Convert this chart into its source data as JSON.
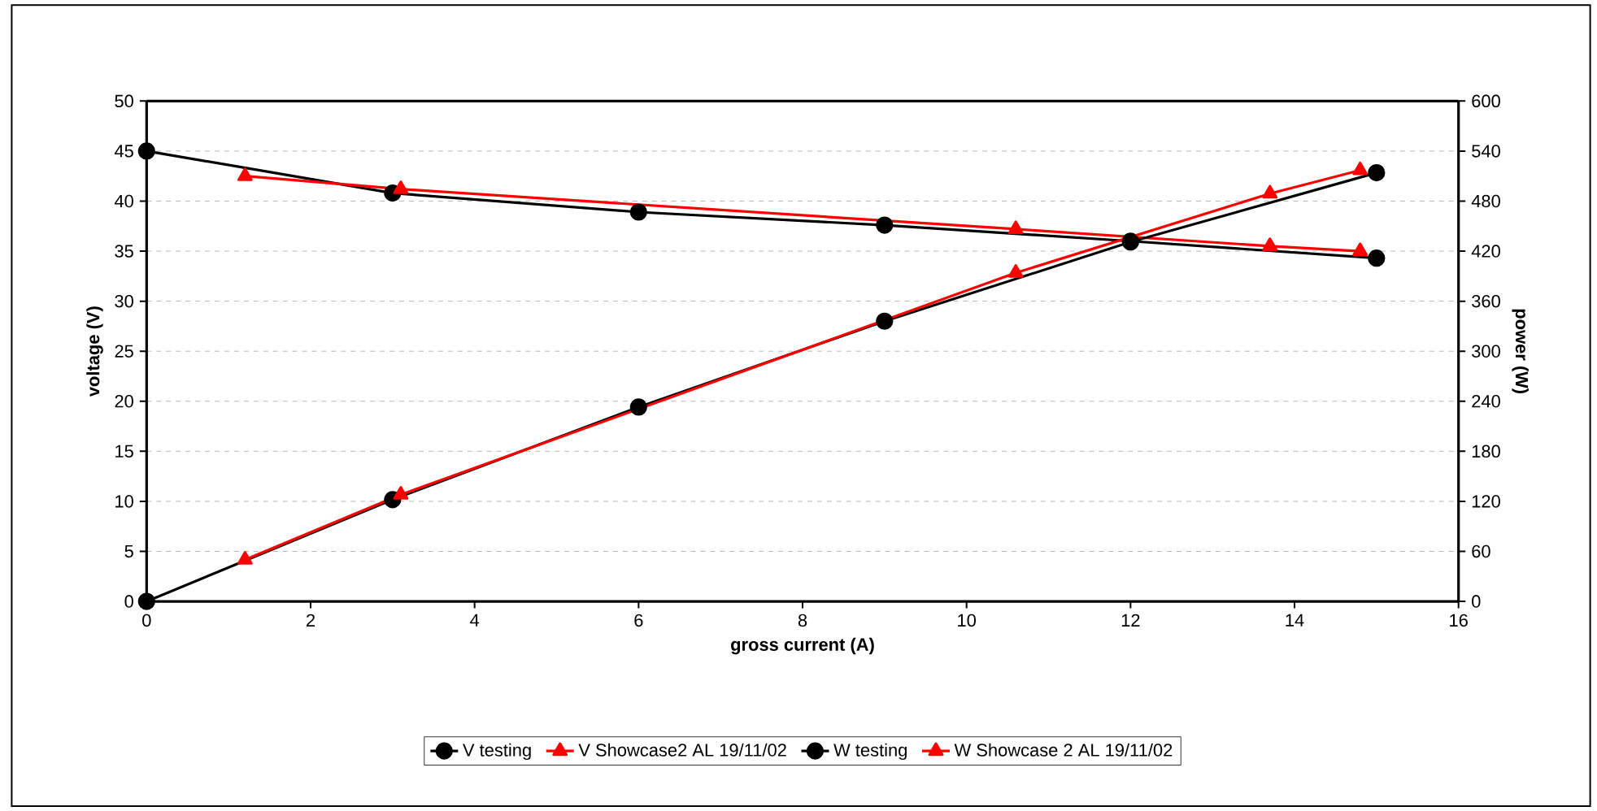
{
  "chart_data": {
    "type": "line",
    "xlabel": "gross current (A)",
    "ylabel": "voltage (V)",
    "y2label": "power (W)",
    "xlim": [
      0,
      16
    ],
    "xticks": [
      0,
      2,
      4,
      6,
      8,
      10,
      12,
      14,
      16
    ],
    "ylim": [
      0,
      50
    ],
    "yticks": [
      0,
      5,
      10,
      15,
      20,
      25,
      30,
      35,
      40,
      45,
      50
    ],
    "y2lim": [
      0,
      600
    ],
    "y2ticks": [
      0,
      60,
      120,
      180,
      240,
      300,
      360,
      420,
      480,
      540,
      600
    ],
    "grid": "y",
    "legend": "bottom",
    "series": [
      {
        "name": "V testing",
        "color": "#000000",
        "marker": "circle",
        "x": [
          0,
          3,
          6,
          9,
          12,
          15
        ],
        "values": [
          45,
          40.8,
          38.9,
          37.6,
          36,
          34.3
        ]
      },
      {
        "name": "V Showcase2 AL 19/11/02",
        "color": "#ff0000",
        "marker": "triangle",
        "x": [
          1.2,
          3.1,
          10.6,
          13.7,
          14.8
        ],
        "values": [
          42.5,
          41.2,
          37.2,
          35.5,
          35
        ]
      },
      {
        "name": "W testing",
        "color": "#000000",
        "marker": "circle",
        "axis": "y2",
        "x": [
          0,
          3,
          6,
          9,
          12,
          15
        ],
        "values": [
          0,
          122,
          233,
          336,
          431,
          514
        ]
      },
      {
        "name": "W Showcase 2 AL 19/11/02",
        "color": "#ff0000",
        "marker": "triangle",
        "axis": "y2",
        "x": [
          1.2,
          3.1,
          10.6,
          13.7,
          14.8
        ],
        "values": [
          50,
          128,
          394,
          489,
          517
        ]
      }
    ]
  }
}
